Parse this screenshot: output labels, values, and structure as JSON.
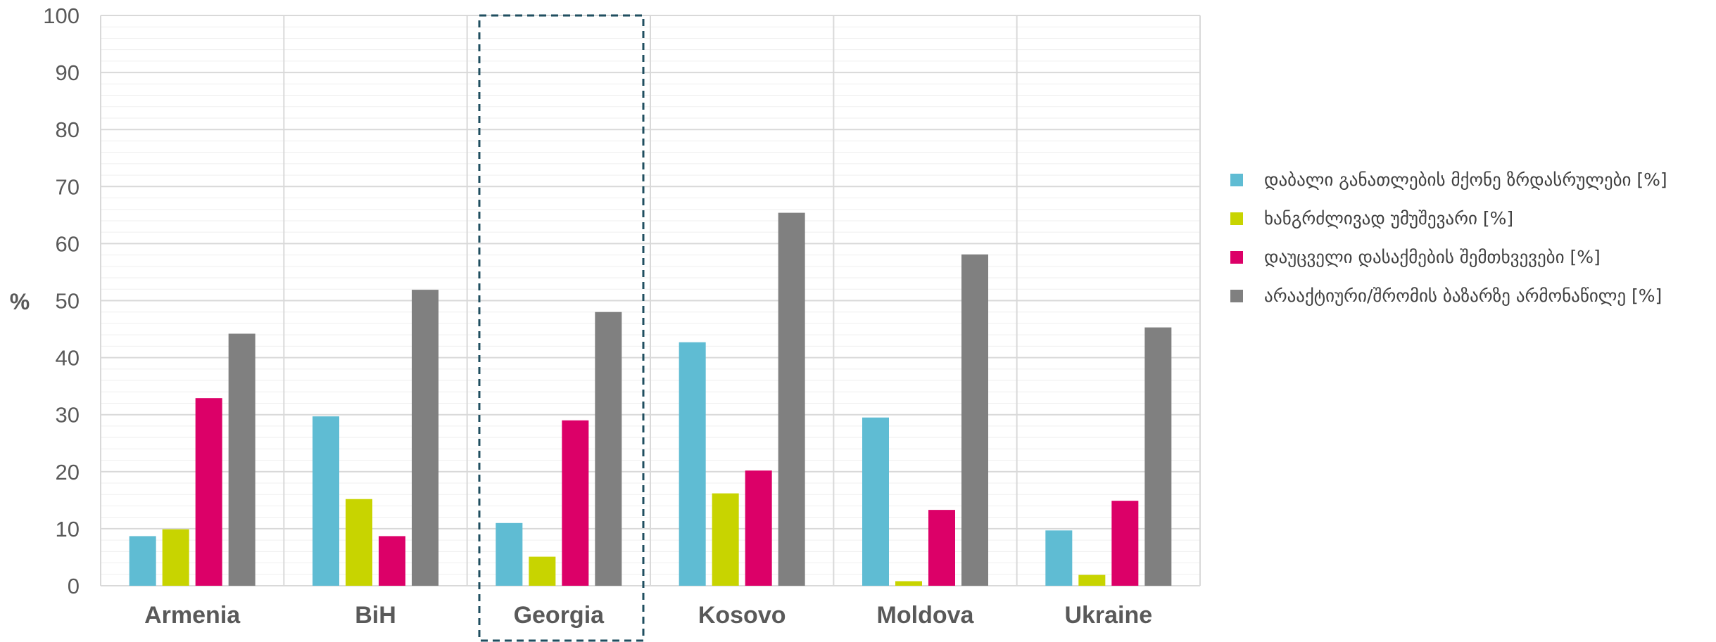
{
  "chart_data": {
    "type": "bar",
    "categories": [
      "Armenia",
      "BiH",
      "Georgia",
      "Kosovo",
      "Moldova",
      "Ukraine"
    ],
    "highlighted_category": "Georgia",
    "ylabel": "%",
    "ylim": [
      0,
      100
    ],
    "yticks": [
      0,
      10,
      20,
      30,
      40,
      50,
      60,
      70,
      80,
      90,
      100
    ],
    "grid": true,
    "legend_position": "right",
    "series": [
      {
        "name": "დაბალი განათლების მქონე ზრდასრულები [%]",
        "color": "#5fbcd3",
        "values": [
          8.7,
          29.7,
          11.0,
          42.7,
          29.5,
          9.7
        ]
      },
      {
        "name": "ხანგრძლივად უმუშევარი [%]",
        "color": "#c8d400",
        "values": [
          9.9,
          15.2,
          5.1,
          16.2,
          0.8,
          1.9
        ]
      },
      {
        "name": "დაუცველი დასაქმების შემთხვევები [%]",
        "color": "#dc0068",
        "values": [
          32.9,
          8.7,
          29.0,
          20.2,
          13.3,
          14.9
        ]
      },
      {
        "name": "არააქტიური/შრომის ბაზარზე არმონაწილე [%]",
        "color": "#808080",
        "values": [
          44.2,
          51.9,
          48.0,
          65.4,
          58.1,
          45.3
        ]
      }
    ]
  }
}
